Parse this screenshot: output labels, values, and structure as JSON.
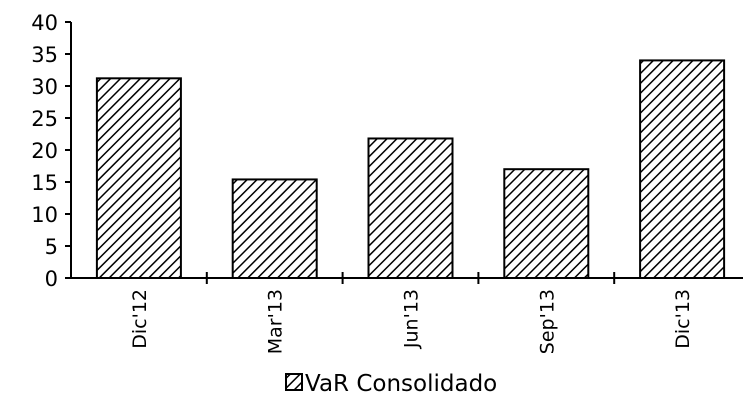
{
  "chart_data": {
    "type": "bar",
    "categories": [
      "Dic'12",
      "Mar'13",
      "Jun'13",
      "Sep'13",
      "Dic'13"
    ],
    "series": [
      {
        "name": "VaR Consolidado",
        "values": [
          31.2,
          15.4,
          21.8,
          17.0,
          34.0
        ]
      }
    ],
    "yticks": [
      "0",
      "5",
      "10",
      "15",
      "20",
      "25",
      "30",
      "35",
      "40"
    ],
    "ylim": [
      0,
      40
    ],
    "y_step": 5,
    "grid": false,
    "legend": "bottom-center",
    "bar_pattern": "diagonal-hatch",
    "colors": {
      "bar_stroke": "#000000",
      "hatch": "#000000",
      "background": "#ffffff"
    }
  }
}
